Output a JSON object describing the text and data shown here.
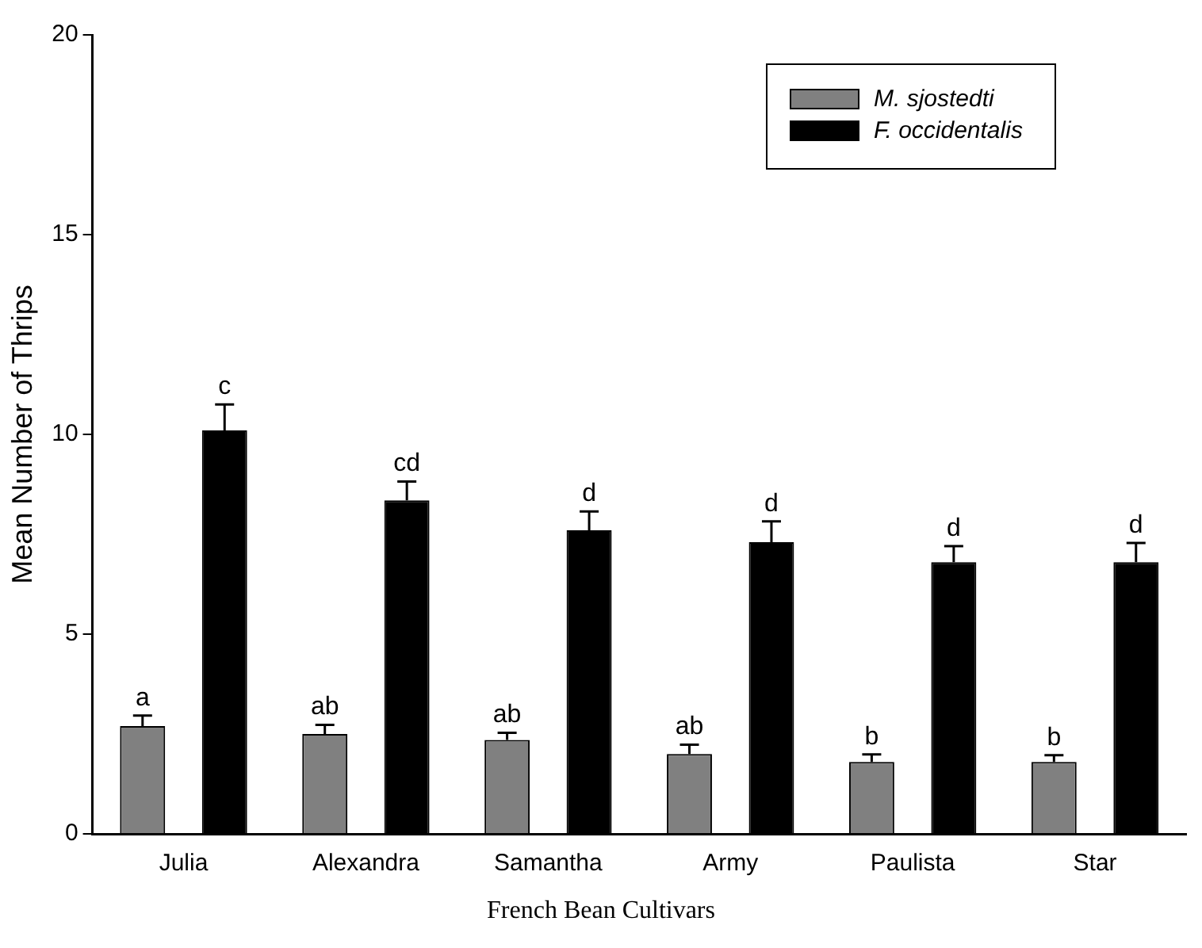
{
  "chart_data": {
    "type": "bar",
    "xlabel": "French Bean Cultivars",
    "ylabel": "Mean Number of Thrips",
    "categories": [
      "Julia",
      "Alexandra",
      "Samantha",
      "Army",
      "Paulista",
      "Star"
    ],
    "series": [
      {
        "name": "M. sjostedti",
        "color": "#808080",
        "values": [
          2.7,
          2.5,
          2.35,
          2.0,
          1.8,
          1.8
        ],
        "errors": [
          0.26,
          0.23,
          0.18,
          0.23,
          0.19,
          0.17
        ]
      },
      {
        "name": "F. occidentalis",
        "color": "#000000",
        "values": [
          10.1,
          8.35,
          7.6,
          7.3,
          6.8,
          6.8
        ],
        "errors": [
          0.65,
          0.47,
          0.47,
          0.52,
          0.4,
          0.48
        ]
      }
    ],
    "ylim": [
      0,
      20
    ],
    "yticks": [
      0,
      5,
      10,
      15,
      20
    ],
    "grid": false,
    "legend": "top right",
    "annotations": [
      "a",
      "c",
      "ab",
      "cd",
      "ab",
      "d",
      "ab",
      "d",
      "b",
      "d",
      "b",
      "d"
    ]
  }
}
